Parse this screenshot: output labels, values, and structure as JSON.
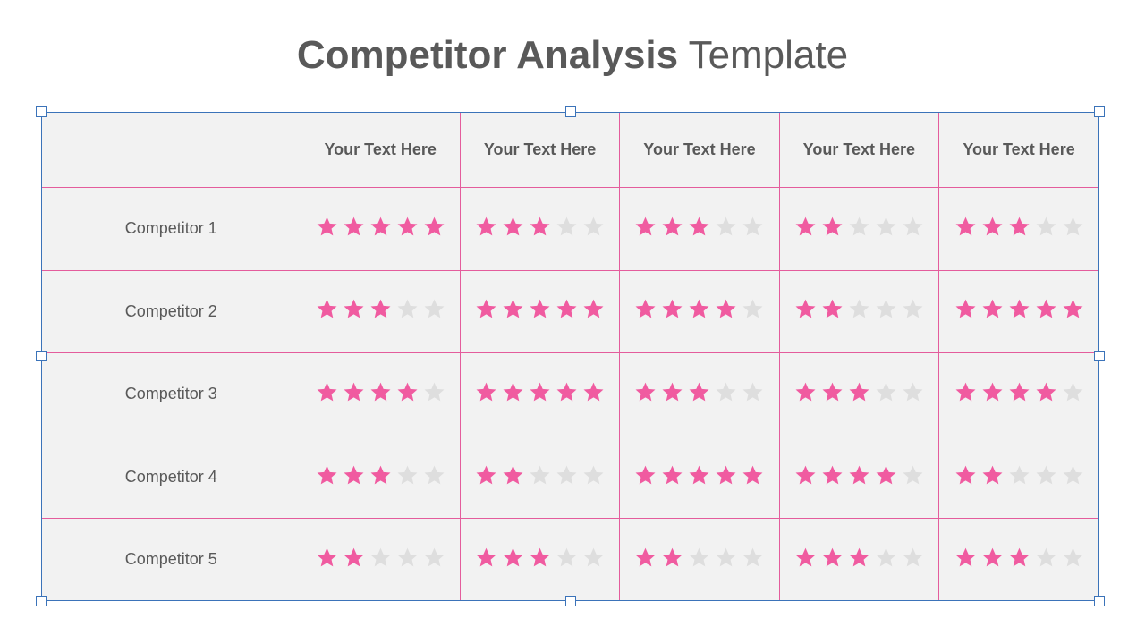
{
  "title": {
    "bold": "Competitor Analysis",
    "light": "Template"
  },
  "colors": {
    "filled_star": "#f05ba0",
    "empty_star": "#dedede",
    "grid": "#e45c9c",
    "selection": "#3b73b9"
  },
  "table": {
    "headers": [
      "Your Text Here",
      "Your Text Here",
      "Your Text Here",
      "Your Text Here",
      "Your Text Here"
    ],
    "max_rating": 5,
    "rows": [
      {
        "name": "Competitor 1",
        "ratings": [
          5,
          3,
          3,
          2,
          3
        ]
      },
      {
        "name": "Competitor 2",
        "ratings": [
          3,
          5,
          4,
          2,
          5
        ]
      },
      {
        "name": "Competitor 3",
        "ratings": [
          4,
          5,
          3,
          3,
          4
        ]
      },
      {
        "name": "Competitor 4",
        "ratings": [
          3,
          2,
          5,
          4,
          2
        ]
      },
      {
        "name": "Competitor 5",
        "ratings": [
          2,
          3,
          2,
          3,
          3
        ]
      }
    ]
  }
}
